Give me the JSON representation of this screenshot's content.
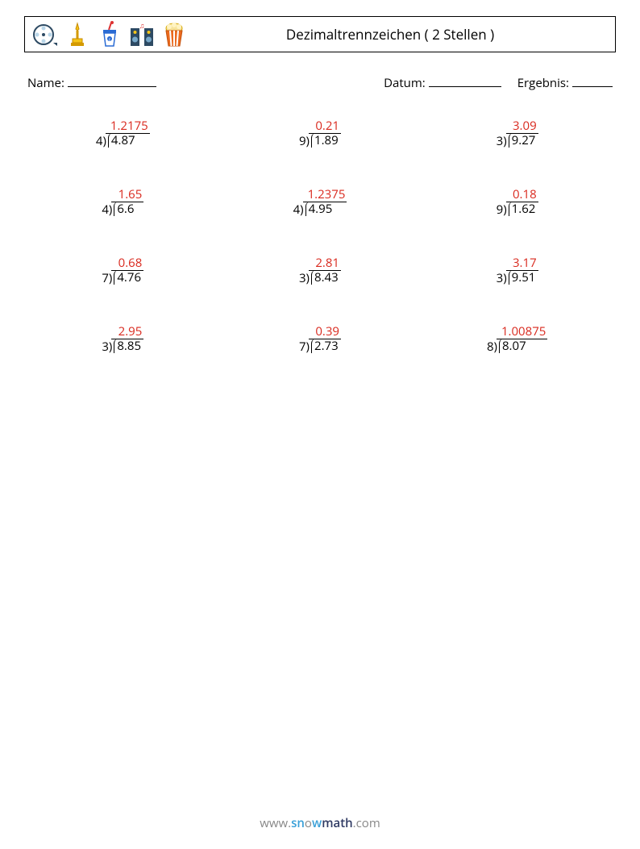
{
  "header": {
    "title": "Dezimaltrennzeichen ( 2 Stellen )"
  },
  "info": {
    "name_label": "Name:",
    "date_label": "Datum:",
    "result_label": "Ergebnis:"
  },
  "answer_color": "#d9281d",
  "problems": [
    {
      "divisor": "4",
      "dividend": "4.87",
      "answer": "1.2175"
    },
    {
      "divisor": "9",
      "dividend": "1.89",
      "answer": "0.21"
    },
    {
      "divisor": "3",
      "dividend": "9.27",
      "answer": "3.09"
    },
    {
      "divisor": "4",
      "dividend": "6.6",
      "answer": "1.65"
    },
    {
      "divisor": "4",
      "dividend": "4.95",
      "answer": "1.2375"
    },
    {
      "divisor": "9",
      "dividend": "1.62",
      "answer": "0.18"
    },
    {
      "divisor": "7",
      "dividend": "4.76",
      "answer": "0.68"
    },
    {
      "divisor": "3",
      "dividend": "8.43",
      "answer": "2.81"
    },
    {
      "divisor": "3",
      "dividend": "9.51",
      "answer": "3.17"
    },
    {
      "divisor": "3",
      "dividend": "8.85",
      "answer": "2.95"
    },
    {
      "divisor": "7",
      "dividend": "2.73",
      "answer": "0.39"
    },
    {
      "divisor": "8",
      "dividend": "8.07",
      "answer": "1.00875"
    }
  ],
  "footer": {
    "w1": "www.",
    "s": "sn",
    "o": "o",
    "w2": "w",
    "m": "math",
    "com": ".com"
  }
}
